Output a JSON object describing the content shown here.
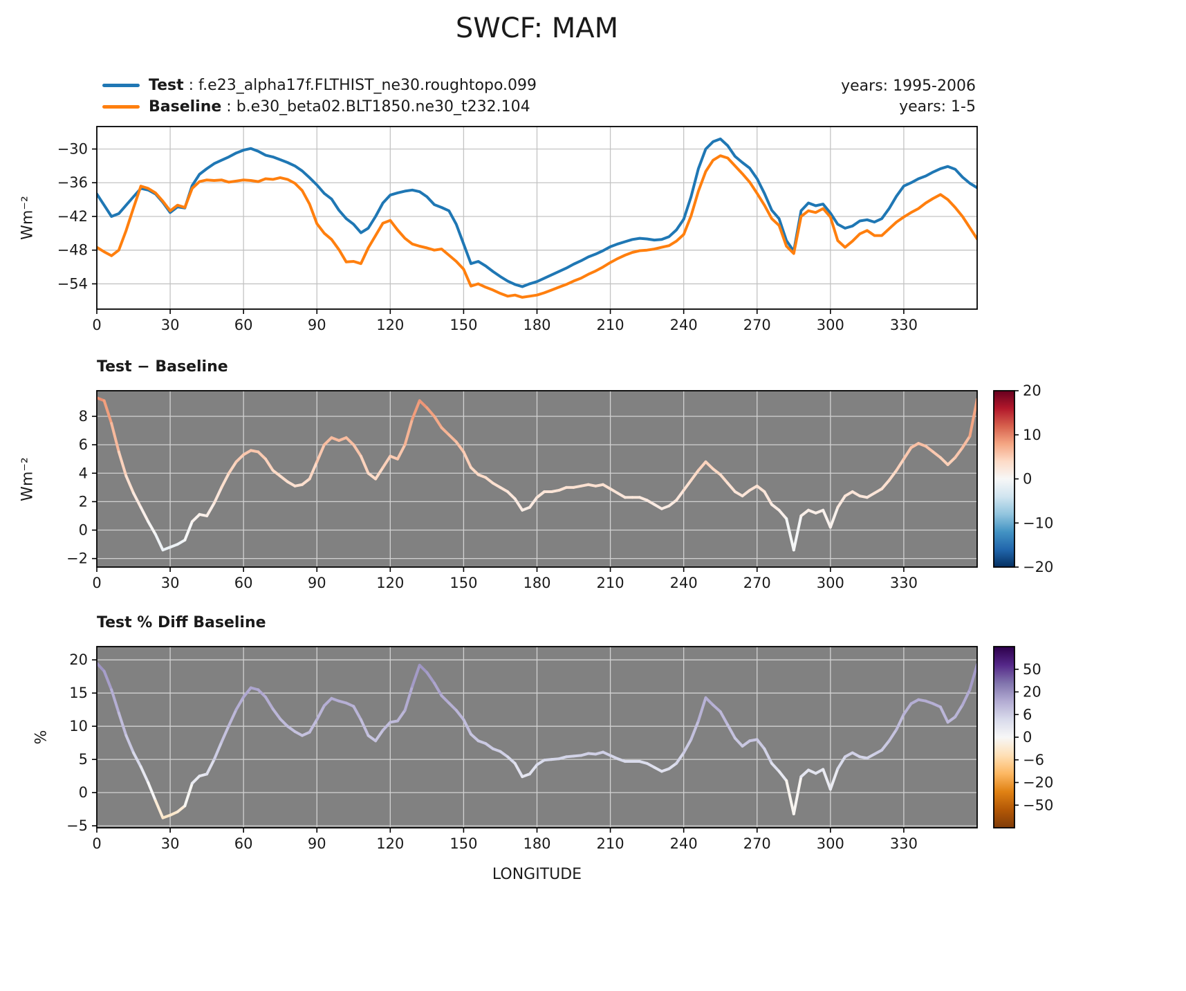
{
  "title": "SWCF: MAM",
  "legend": {
    "entries": [
      {
        "label": "Test",
        "name": " : f.e23_alpha17f.FLTHIST_ne30.roughtopo.099",
        "color": "#1f77b4"
      },
      {
        "label": "Baseline",
        "name": " : b.e30_beta02.BLT1850.ne30_t232.104",
        "color": "#ff7f0e"
      }
    ],
    "years_top": "years: 1995-2006",
    "years_bottom": "years: 1-5"
  },
  "colors": {
    "test_line": "#1f77b4",
    "baseline_line": "#ff7f0e",
    "panel_background_gray": "#818181",
    "grid_line": "#d2d2d2",
    "figure_background": "#ffffff",
    "text": "#1a1a1a"
  },
  "chart_data": [
    {
      "type": "line",
      "title": "",
      "ylabel": "Wm⁻²",
      "xlim": [
        0,
        360
      ],
      "ylim": [
        -58.5,
        -26.0
      ],
      "xticks": [
        0,
        30,
        60,
        90,
        120,
        150,
        180,
        210,
        240,
        270,
        300,
        330
      ],
      "yticks": [
        -54,
        -48,
        -42,
        -36,
        -30
      ],
      "x_start": 0,
      "x_step": 3,
      "series": [
        {
          "name": "Test",
          "color": "#1f77b4",
          "values": [
            -38,
            -40,
            -42,
            -41.5,
            -40,
            -38.5,
            -37,
            -37.3,
            -38,
            -39.5,
            -41.3,
            -40.3,
            -40.5,
            -36.5,
            -34.5,
            -33.5,
            -32.6,
            -32,
            -31.4,
            -30.7,
            -30.2,
            -29.9,
            -30.4,
            -31.1,
            -31.4,
            -31.9,
            -32.4,
            -33,
            -33.9,
            -35.1,
            -36.4,
            -37.9,
            -38.9,
            -40.9,
            -42.4,
            -43.4,
            -44.9,
            -44.1,
            -42,
            -39.6,
            -38.2,
            -37.8,
            -37.5,
            -37.3,
            -37.6,
            -38.5,
            -39.9,
            -40.4,
            -41,
            -43.4,
            -46.9,
            -50.4,
            -50,
            -50.8,
            -51.8,
            -52.7,
            -53.5,
            -54.1,
            -54.5,
            -54,
            -53.6,
            -53,
            -52.4,
            -51.8,
            -51.2,
            -50.5,
            -49.9,
            -49.2,
            -48.7,
            -48.1,
            -47.4,
            -46.9,
            -46.5,
            -46.1,
            -45.9,
            -46,
            -46.2,
            -46.1,
            -45.6,
            -44.4,
            -42.5,
            -38.5,
            -33.5,
            -30,
            -28.7,
            -28.2,
            -29.4,
            -31.3,
            -32.4,
            -33.4,
            -35.3,
            -37.9,
            -40.9,
            -42.4,
            -46.3,
            -48.2,
            -41,
            -39.6,
            -40.1,
            -39.8,
            -41.4,
            -43.4,
            -44.1,
            -43.7,
            -42.8,
            -42.6,
            -43,
            -42.4,
            -40.6,
            -38.4,
            -36.6,
            -36,
            -35.3,
            -34.8,
            -34.1,
            -33.5,
            -33.1,
            -33.6,
            -35,
            -36.1,
            -36.9
          ]
        },
        {
          "name": "Baseline",
          "color": "#ff7f0e",
          "values": [
            -47.5,
            -48.3,
            -49,
            -48,
            -44.5,
            -40.5,
            -36.6,
            -37,
            -37.8,
            -39.3,
            -41,
            -40,
            -40.4,
            -37,
            -35.8,
            -35.5,
            -35.6,
            -35.5,
            -35.9,
            -35.7,
            -35.5,
            -35.6,
            -35.8,
            -35.3,
            -35.4,
            -35.1,
            -35.4,
            -36.1,
            -37.4,
            -39.8,
            -43.3,
            -45,
            -46.1,
            -47.9,
            -50.1,
            -50,
            -50.4,
            -47.6,
            -45.4,
            -43.2,
            -42.7,
            -44.4,
            -45.9,
            -46.9,
            -47.3,
            -47.6,
            -48,
            -47.8,
            -48.9,
            -50,
            -51.4,
            -54.4,
            -54,
            -54.6,
            -55.1,
            -55.7,
            -56.2,
            -56,
            -56.4,
            -56.2,
            -56,
            -55.6,
            -55.1,
            -54.6,
            -54.1,
            -53.5,
            -53,
            -52.3,
            -51.7,
            -51,
            -50.2,
            -49.5,
            -48.9,
            -48.4,
            -48.1,
            -48,
            -47.8,
            -47.5,
            -47.2,
            -46.4,
            -45.2,
            -41.9,
            -37.5,
            -34,
            -32,
            -31.2,
            -31.6,
            -33,
            -34.4,
            -35.9,
            -37.9,
            -40,
            -42.4,
            -43.6,
            -47.3,
            -48.6,
            -42,
            -41,
            -41.3,
            -40.6,
            -42.1,
            -46.3,
            -47.5,
            -46.4,
            -45.1,
            -44.5,
            -45.4,
            -45.4,
            -44.2,
            -43,
            -42.1,
            -41.3,
            -40.6,
            -39.6,
            -38.8,
            -38.1,
            -39,
            -40.4,
            -42,
            -44,
            -46
          ]
        }
      ]
    },
    {
      "type": "line",
      "title": "Test − Baseline",
      "ylabel": "Wm⁻²",
      "xlim": [
        0,
        360
      ],
      "ylim": [
        -2.6,
        9.8
      ],
      "xticks": [
        0,
        30,
        60,
        90,
        120,
        150,
        180,
        210,
        240,
        270,
        300,
        330
      ],
      "yticks": [
        -2,
        0,
        2,
        4,
        6,
        8
      ],
      "x_start": 0,
      "x_step": 3,
      "colormap": "RdBu_r",
      "cnorm": {
        "type": "linear",
        "vmin": -20,
        "vmax": 20
      },
      "colorbar_ticks": [
        20,
        10,
        0,
        -10,
        -20
      ],
      "values": [
        9.3,
        9.1,
        7.5,
        5.5,
        3.8,
        2.6,
        1.6,
        0.6,
        -0.3,
        -1.4,
        -1.2,
        -1,
        -0.7,
        0.6,
        1.1,
        1,
        1.9,
        3,
        4,
        4.8,
        5.3,
        5.6,
        5.5,
        5,
        4.2,
        3.8,
        3.4,
        3.1,
        3.2,
        3.6,
        4.8,
        6,
        6.5,
        6.3,
        6.5,
        6,
        5.2,
        4,
        3.6,
        4.4,
        5.2,
        5,
        6,
        7.8,
        9.1,
        8.6,
        8,
        7.2,
        6.7,
        6.2,
        5.5,
        4.4,
        3.9,
        3.7,
        3.3,
        3,
        2.7,
        2.2,
        1.4,
        1.6,
        2.3,
        2.7,
        2.7,
        2.8,
        3,
        3,
        3.1,
        3.2,
        3.1,
        3.2,
        2.9,
        2.6,
        2.3,
        2.3,
        2.3,
        2.1,
        1.8,
        1.5,
        1.7,
        2.1,
        2.8,
        3.5,
        4.2,
        4.8,
        4.3,
        3.9,
        3.3,
        2.7,
        2.4,
        2.8,
        3.1,
        2.7,
        1.8,
        1.4,
        0.8,
        -1.4,
        1,
        1.4,
        1.2,
        1.4,
        0.2,
        1.6,
        2.4,
        2.7,
        2.4,
        2.3,
        2.6,
        2.9,
        3.5,
        4.2,
        5,
        5.8,
        6.1,
        5.9,
        5.5,
        5.1,
        4.6,
        5.1,
        5.8,
        6.6,
        9.2
      ]
    },
    {
      "type": "line",
      "title": "Test % Diff Baseline",
      "ylabel": "%",
      "xlabel": "LONGITUDE",
      "xlim": [
        0,
        360
      ],
      "ylim": [
        -5.3,
        22.0
      ],
      "xticks": [
        0,
        30,
        60,
        90,
        120,
        150,
        180,
        210,
        240,
        270,
        300,
        330
      ],
      "yticks": [
        -5,
        0,
        5,
        10,
        15,
        20
      ],
      "x_start": 0,
      "x_step": 3,
      "colormap": "PuOr",
      "cnorm": {
        "type": "piecewise",
        "breaks": [
          -75,
          -50,
          -20,
          -6,
          0,
          6,
          20,
          50,
          75
        ]
      },
      "colorbar_ticks": [
        50,
        20,
        6,
        0,
        -6,
        -20,
        -50
      ],
      "values": [
        19.5,
        18.3,
        15.5,
        12,
        8.6,
        6,
        3.9,
        1.5,
        -1.2,
        -3.8,
        -3.4,
        -2.9,
        -2,
        1.4,
        2.5,
        2.8,
        5,
        7.6,
        10.1,
        12.5,
        14.4,
        15.8,
        15.5,
        14.4,
        12.6,
        11.1,
        10,
        9.2,
        8.6,
        9.1,
        11,
        13.1,
        14.2,
        13.8,
        13.5,
        13,
        11,
        8.6,
        7.8,
        9.4,
        10.6,
        10.8,
        12.4,
        16,
        19.2,
        18.1,
        16.5,
        14.6,
        13.5,
        12.4,
        11,
        8.8,
        7.8,
        7.4,
        6.6,
        6.2,
        5.4,
        4.4,
        2.4,
        2.8,
        4.2,
        4.9,
        5,
        5.1,
        5.4,
        5.5,
        5.6,
        5.9,
        5.8,
        6.1,
        5.6,
        5.1,
        4.7,
        4.7,
        4.7,
        4.4,
        3.8,
        3.2,
        3.6,
        4.4,
        6,
        8,
        10.8,
        14.3,
        13.2,
        12.2,
        10.2,
        8.2,
        7,
        7.8,
        8,
        6.6,
        4.4,
        3.2,
        1.8,
        -3.2,
        2.4,
        3.4,
        2.9,
        3.5,
        0.5,
        3.6,
        5.4,
        6,
        5.4,
        5.2,
        5.8,
        6.4,
        7.8,
        9.5,
        11.8,
        13.4,
        14,
        13.8,
        13.4,
        12.9,
        10.6,
        11.4,
        13.2,
        15.5,
        19.3
      ]
    }
  ]
}
